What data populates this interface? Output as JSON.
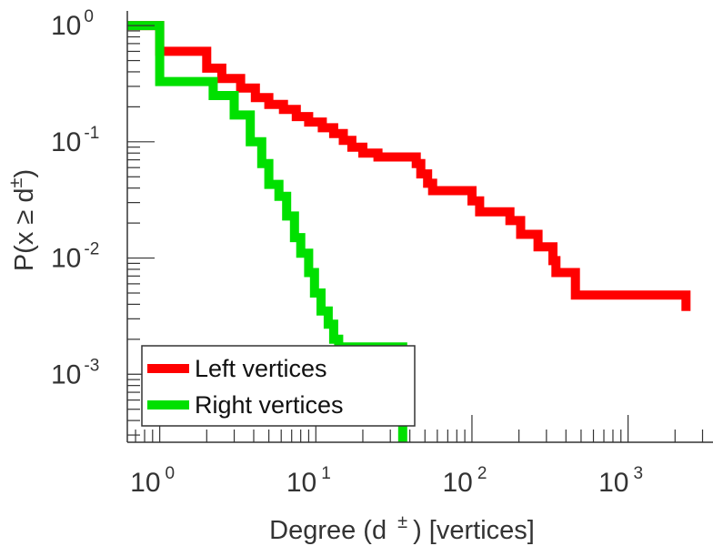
{
  "chart_data": {
    "type": "line",
    "xlabel": {
      "main": "Degree (d",
      "sup": "±",
      "tail": ") [vertices]"
    },
    "ylabel": {
      "main": "P(x ≥ d",
      "sup": "±",
      "tail": ")"
    },
    "x_scale": "log",
    "y_scale": "log",
    "xlim": [
      0.62,
      3500
    ],
    "ylim": [
      0.00026,
      1.2
    ],
    "x_ticks": [
      {
        "base": "10",
        "exp": "0",
        "value": 1
      },
      {
        "base": "10",
        "exp": "1",
        "value": 10
      },
      {
        "base": "10",
        "exp": "2",
        "value": 100
      },
      {
        "base": "10",
        "exp": "3",
        "value": 1000
      }
    ],
    "y_ticks": [
      {
        "base": "10",
        "exp": "0",
        "value": 1
      },
      {
        "base": "10",
        "exp": "-1",
        "value": 0.1
      },
      {
        "base": "10",
        "exp": "-2",
        "value": 0.01
      },
      {
        "base": "10",
        "exp": "-3",
        "value": 0.001
      }
    ],
    "grid": false,
    "legend_position": "bottom-left",
    "step": "post",
    "series": [
      {
        "name": "Left vertices",
        "color": "#ff0000",
        "points": [
          [
            0.62,
            1.0
          ],
          [
            1.0,
            1.0
          ],
          [
            1.0,
            0.6
          ],
          [
            2.0,
            0.6
          ],
          [
            2.0,
            0.43
          ],
          [
            2.5,
            0.43
          ],
          [
            2.5,
            0.35
          ],
          [
            3.3,
            0.35
          ],
          [
            3.3,
            0.29
          ],
          [
            4.1,
            0.29
          ],
          [
            4.1,
            0.24
          ],
          [
            5.0,
            0.24
          ],
          [
            5.0,
            0.21
          ],
          [
            6.2,
            0.21
          ],
          [
            6.2,
            0.19
          ],
          [
            7.5,
            0.19
          ],
          [
            7.5,
            0.165
          ],
          [
            9.0,
            0.165
          ],
          [
            9.0,
            0.148
          ],
          [
            11,
            0.148
          ],
          [
            11,
            0.132
          ],
          [
            13,
            0.132
          ],
          [
            13,
            0.118
          ],
          [
            15,
            0.118
          ],
          [
            15,
            0.103
          ],
          [
            17,
            0.103
          ],
          [
            17,
            0.09
          ],
          [
            20,
            0.09
          ],
          [
            20,
            0.08
          ],
          [
            25,
            0.08
          ],
          [
            25,
            0.074
          ],
          [
            44,
            0.074
          ],
          [
            44,
            0.065
          ],
          [
            47,
            0.065
          ],
          [
            47,
            0.053
          ],
          [
            52,
            0.053
          ],
          [
            52,
            0.044
          ],
          [
            56,
            0.044
          ],
          [
            56,
            0.038
          ],
          [
            100,
            0.038
          ],
          [
            100,
            0.031
          ],
          [
            112,
            0.031
          ],
          [
            112,
            0.025
          ],
          [
            175,
            0.025
          ],
          [
            175,
            0.021
          ],
          [
            205,
            0.021
          ],
          [
            205,
            0.016
          ],
          [
            265,
            0.016
          ],
          [
            265,
            0.0125
          ],
          [
            330,
            0.0125
          ],
          [
            330,
            0.0095
          ],
          [
            345,
            0.0095
          ],
          [
            345,
            0.0075
          ],
          [
            460,
            0.0075
          ],
          [
            460,
            0.0048
          ],
          [
            2350,
            0.0048
          ],
          [
            2350,
            0.0035
          ]
        ]
      },
      {
        "name": "Right vertices",
        "color": "#00e000",
        "points": [
          [
            0.62,
            1.0
          ],
          [
            1.0,
            1.0
          ],
          [
            1.0,
            0.33
          ],
          [
            2.2,
            0.33
          ],
          [
            2.2,
            0.25
          ],
          [
            3.0,
            0.25
          ],
          [
            3.0,
            0.17
          ],
          [
            3.8,
            0.17
          ],
          [
            3.8,
            0.1
          ],
          [
            4.5,
            0.1
          ],
          [
            4.5,
            0.065
          ],
          [
            5.0,
            0.065
          ],
          [
            5.0,
            0.043
          ],
          [
            5.8,
            0.043
          ],
          [
            5.8,
            0.034
          ],
          [
            6.5,
            0.034
          ],
          [
            6.5,
            0.023
          ],
          [
            7.3,
            0.023
          ],
          [
            7.3,
            0.015
          ],
          [
            8.0,
            0.015
          ],
          [
            8.0,
            0.011
          ],
          [
            9.0,
            0.011
          ],
          [
            9.0,
            0.0075
          ],
          [
            9.8,
            0.0075
          ],
          [
            9.8,
            0.005
          ],
          [
            10.8,
            0.005
          ],
          [
            10.8,
            0.0035
          ],
          [
            12.0,
            0.0035
          ],
          [
            12.0,
            0.0027
          ],
          [
            13.0,
            0.0027
          ],
          [
            13.0,
            0.002
          ],
          [
            14.0,
            0.002
          ],
          [
            14.0,
            0.00172
          ],
          [
            36,
            0.00172
          ],
          [
            36,
            0.00026
          ]
        ]
      }
    ]
  }
}
